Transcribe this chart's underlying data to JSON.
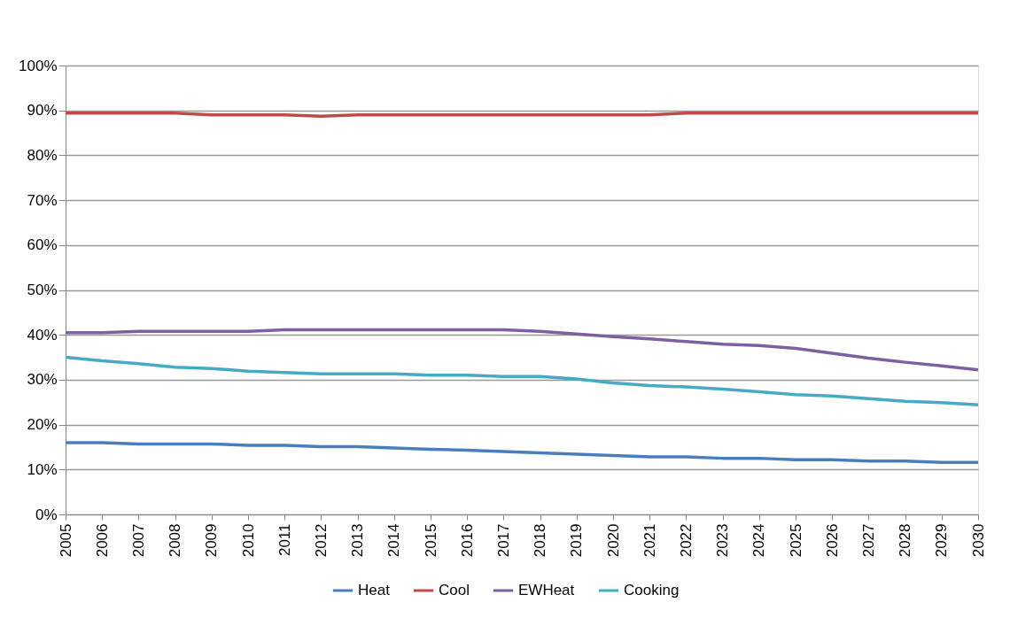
{
  "chart_data": {
    "type": "line",
    "categories": [
      "2005",
      "2006",
      "2007",
      "2008",
      "2009",
      "2010",
      "2011",
      "2012",
      "2013",
      "2014",
      "2015",
      "2016",
      "2017",
      "2018",
      "2019",
      "2020",
      "2021",
      "2022",
      "2023",
      "2024",
      "2025",
      "2026",
      "2027",
      "2028",
      "2029",
      "2030"
    ],
    "series": [
      {
        "name": "Heat",
        "color": "#4a7ebb",
        "values": [
          16.0,
          16.0,
          15.7,
          15.7,
          15.7,
          15.4,
          15.4,
          15.1,
          15.1,
          14.8,
          14.5,
          14.3,
          14.0,
          13.7,
          13.4,
          13.1,
          12.8,
          12.8,
          12.5,
          12.5,
          12.2,
          12.2,
          11.9,
          11.9,
          11.6,
          11.6
        ]
      },
      {
        "name": "Cool",
        "color": "#be4b48",
        "values": [
          89.4,
          89.4,
          89.4,
          89.4,
          89.0,
          89.0,
          89.0,
          88.7,
          89.0,
          89.0,
          89.0,
          89.0,
          89.0,
          89.0,
          89.0,
          89.0,
          89.0,
          89.4,
          89.4,
          89.4,
          89.4,
          89.4,
          89.4,
          89.4,
          89.4,
          89.4
        ]
      },
      {
        "name": "EWHeat",
        "color": "#7d60a0",
        "values": [
          40.5,
          40.5,
          40.8,
          40.8,
          40.8,
          40.8,
          41.1,
          41.1,
          41.1,
          41.1,
          41.1,
          41.1,
          41.1,
          40.8,
          40.2,
          39.6,
          39.1,
          38.5,
          37.9,
          37.6,
          37.0,
          35.9,
          34.8,
          33.9,
          33.1,
          32.2
        ]
      },
      {
        "name": "Cooking",
        "color": "#46aac5",
        "values": [
          35.0,
          34.2,
          33.6,
          32.8,
          32.5,
          31.9,
          31.6,
          31.3,
          31.3,
          31.3,
          31.0,
          31.0,
          30.7,
          30.7,
          30.2,
          29.3,
          28.7,
          28.4,
          27.9,
          27.3,
          26.7,
          26.4,
          25.8,
          25.2,
          24.9,
          24.4
        ]
      }
    ],
    "ylim": [
      0,
      100
    ],
    "yticks": [
      {
        "value": 0,
        "label": "0%"
      },
      {
        "value": 10,
        "label": "10%"
      },
      {
        "value": 20,
        "label": "20%"
      },
      {
        "value": 30,
        "label": "30%"
      },
      {
        "value": 40,
        "label": "40%"
      },
      {
        "value": 50,
        "label": "50%"
      },
      {
        "value": 60,
        "label": "60%"
      },
      {
        "value": 70,
        "label": "70%"
      },
      {
        "value": 80,
        "label": "80%"
      },
      {
        "value": 90,
        "label": "90%"
      },
      {
        "value": 100,
        "label": "100%"
      }
    ],
    "grid": "y",
    "legend": "bottom",
    "marker": "none",
    "line_style": "solid"
  }
}
